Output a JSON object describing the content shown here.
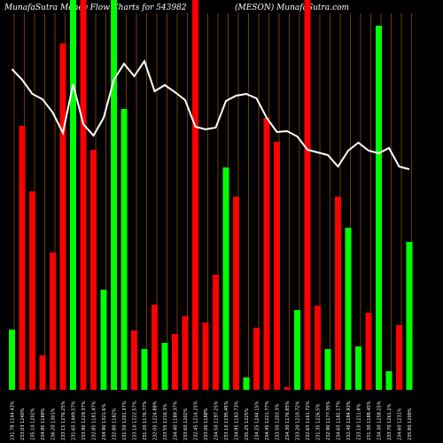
{
  "chart_data": {
    "type": "bar",
    "title": "MunafaSutra  Money Flow  Charts for 543982",
    "subtitle": "(MESON) MunafaSutra.com",
    "categories": [
      "231.78 1144.43%",
      "233.03 1240%",
      "235.10 1202%",
      "234.85 1189%",
      "236.20 1301%",
      "233.15 1276.25%",
      "231.65 1449.57%",
      "233.90 1229.37%",
      "232.85 1181.47%",
      "234.90 1321.6%",
      "232.80 1182%",
      "231.50 1201.37%",
      "233.10 1222.57%",
      "231.20 1176.77%",
      "232.05 1224.88%",
      "233.55 1216.3%",
      "234.40 1189.37%",
      "233.60 1202%",
      "232.45 1214.25%",
      "233.00 1188%",
      "234.50 1197.25%",
      "233.10 1195.45%",
      "234.95 1183.73%",
      "235.25 1225%",
      "234.25 1244.15%",
      "234.45 1221.77%",
      "233.50 1203.3%",
      "234.30 1176.85%",
      "233.20 1210.72%",
      "232.65 1161.72%",
      "231.35 1226.5%",
      "232.90 1177.35%",
      "234.65 1182.17%",
      "232.40 1184.93%",
      "233.10 1211.8%",
      "231.30 1188.45%",
      "234.30 1258.25%",
      "233.70 1261.2%",
      "234.60 1231%",
      "235.80 1209%"
    ],
    "values": [
      68,
      298,
      224,
      39,
      155,
      391,
      440,
      440,
      271,
      113,
      440,
      317,
      67,
      46,
      96,
      53,
      63,
      83,
      440,
      76,
      130,
      251,
      218,
      14,
      70,
      307,
      280,
      3,
      90,
      440,
      95,
      46,
      218,
      183,
      49,
      87,
      411,
      21,
      73,
      167
    ],
    "colors": [
      "#00ff00",
      "#ff0000",
      "#ff0000",
      "#ff0000",
      "#ff0000",
      "#ff0000",
      "#00ff00",
      "#ff0000",
      "#ff0000",
      "#00ff00",
      "#00ff00",
      "#00ff00",
      "#ff0000",
      "#00ff00",
      "#ff0000",
      "#00ff00",
      "#ff0000",
      "#ff0000",
      "#ff0000",
      "#ff0000",
      "#ff0000",
      "#00ff00",
      "#ff0000",
      "#00ff00",
      "#ff0000",
      "#ff0000",
      "#ff0000",
      "#ff0000",
      "#00ff00",
      "#ff0000",
      "#ff0000",
      "#00ff00",
      "#ff0000",
      "#00ff00",
      "#00ff00",
      "#ff0000",
      "#00ff00",
      "#00ff00",
      "#ff0000",
      "#00ff00"
    ],
    "line": {
      "color": "#ffffff",
      "values": [
        362,
        350,
        334,
        328,
        313,
        290,
        345,
        300,
        287,
        307,
        350,
        368,
        354,
        371,
        337,
        344,
        336,
        327,
        297,
        294,
        296,
        326,
        332,
        334,
        329,
        307,
        291,
        292,
        286,
        271,
        268,
        265,
        252,
        270,
        279,
        270,
        267,
        273,
        252,
        249
      ]
    },
    "ylim": [
      0,
      440
    ]
  }
}
